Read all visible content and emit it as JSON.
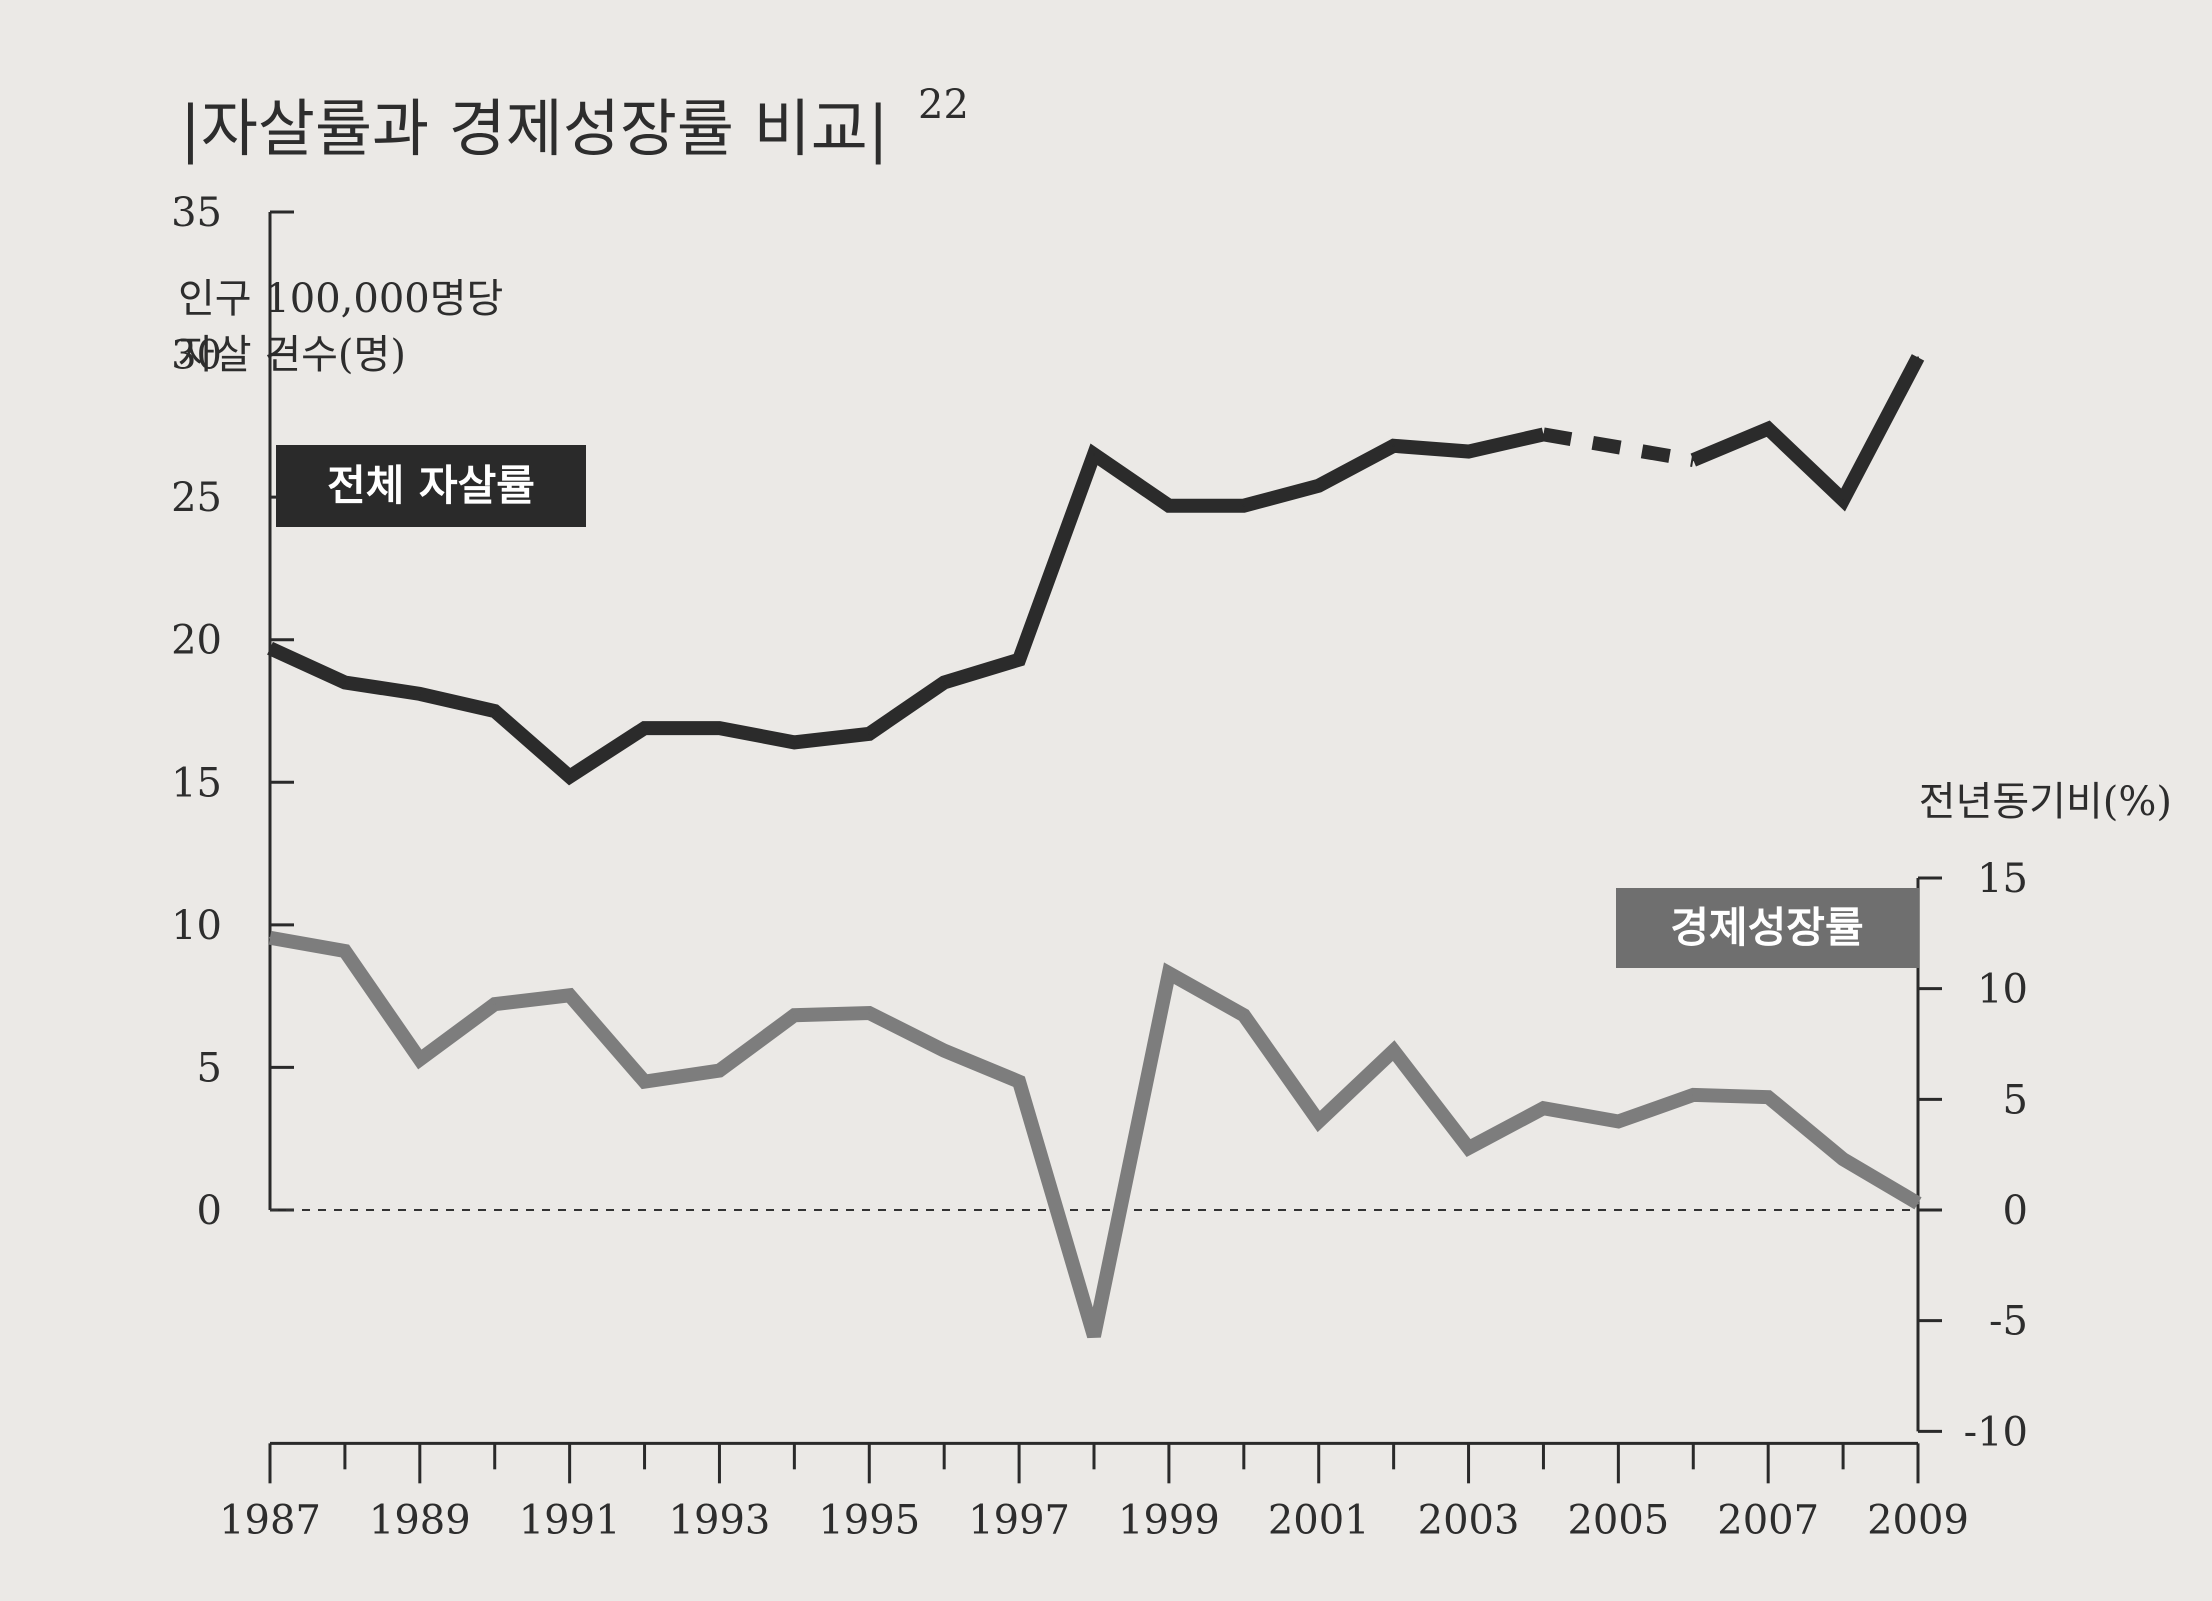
{
  "title": "|자살률과 경제성장률 비교|",
  "title_footnote": "22",
  "chart_data": {
    "type": "line",
    "title": "자살률과 경제성장률 비교",
    "left_axis": {
      "label_line1": "인구 100,000명당",
      "label_line2": "자살 건수(명)",
      "range": [
        0,
        35
      ],
      "ticks": [
        "0",
        "5",
        "10",
        "15",
        "20",
        "25",
        "30",
        "35"
      ]
    },
    "right_axis": {
      "label": "전년동기비(%)",
      "range": [
        -10,
        15
      ],
      "ticks": [
        "-10",
        "-5",
        "0",
        "5",
        "10",
        "15"
      ]
    },
    "x_axis": {
      "range": [
        1987,
        2009
      ],
      "tick_labels": [
        "1987",
        "1989",
        "1991",
        "1993",
        "1995",
        "1997",
        "1999",
        "2001",
        "2003",
        "2005",
        "2007",
        "2009"
      ]
    },
    "series": [
      {
        "name": "전체 자살률",
        "axis": "left",
        "color": "#2b2b2b",
        "x": [
          1987,
          1988,
          1989,
          1990,
          1991,
          1992,
          1993,
          1994,
          1995,
          1996,
          1997,
          1998,
          1999,
          2000,
          2001,
          2002,
          2003,
          2004,
          2005,
          2006,
          2007,
          2008,
          2009
        ],
        "values": [
          19.7,
          18.5,
          18.1,
          17.5,
          15.2,
          16.9,
          16.9,
          16.4,
          16.7,
          18.5,
          19.3,
          26.5,
          24.7,
          24.7,
          25.4,
          26.8,
          26.6,
          27.2,
          26.9,
          26.3,
          27.4,
          24.9,
          29.9
        ],
        "missing_segment": [
          2004,
          2006
        ]
      },
      {
        "name": "경제성장률",
        "axis": "right",
        "color": "#7d7d7d",
        "x": [
          1987,
          1988,
          1989,
          1990,
          1991,
          1992,
          1993,
          1994,
          1995,
          1996,
          1997,
          1998,
          1999,
          2000,
          2001,
          2002,
          2003,
          2004,
          2005,
          2006,
          2007,
          2008,
          2009
        ],
        "values": [
          12.3,
          11.7,
          6.8,
          9.3,
          9.7,
          5.8,
          6.3,
          8.8,
          8.9,
          7.2,
          5.8,
          -5.7,
          10.7,
          8.8,
          4.0,
          7.2,
          2.8,
          4.6,
          4.0,
          5.2,
          5.1,
          2.3,
          0.3
        ]
      }
    ],
    "zero_line": "dashed"
  }
}
